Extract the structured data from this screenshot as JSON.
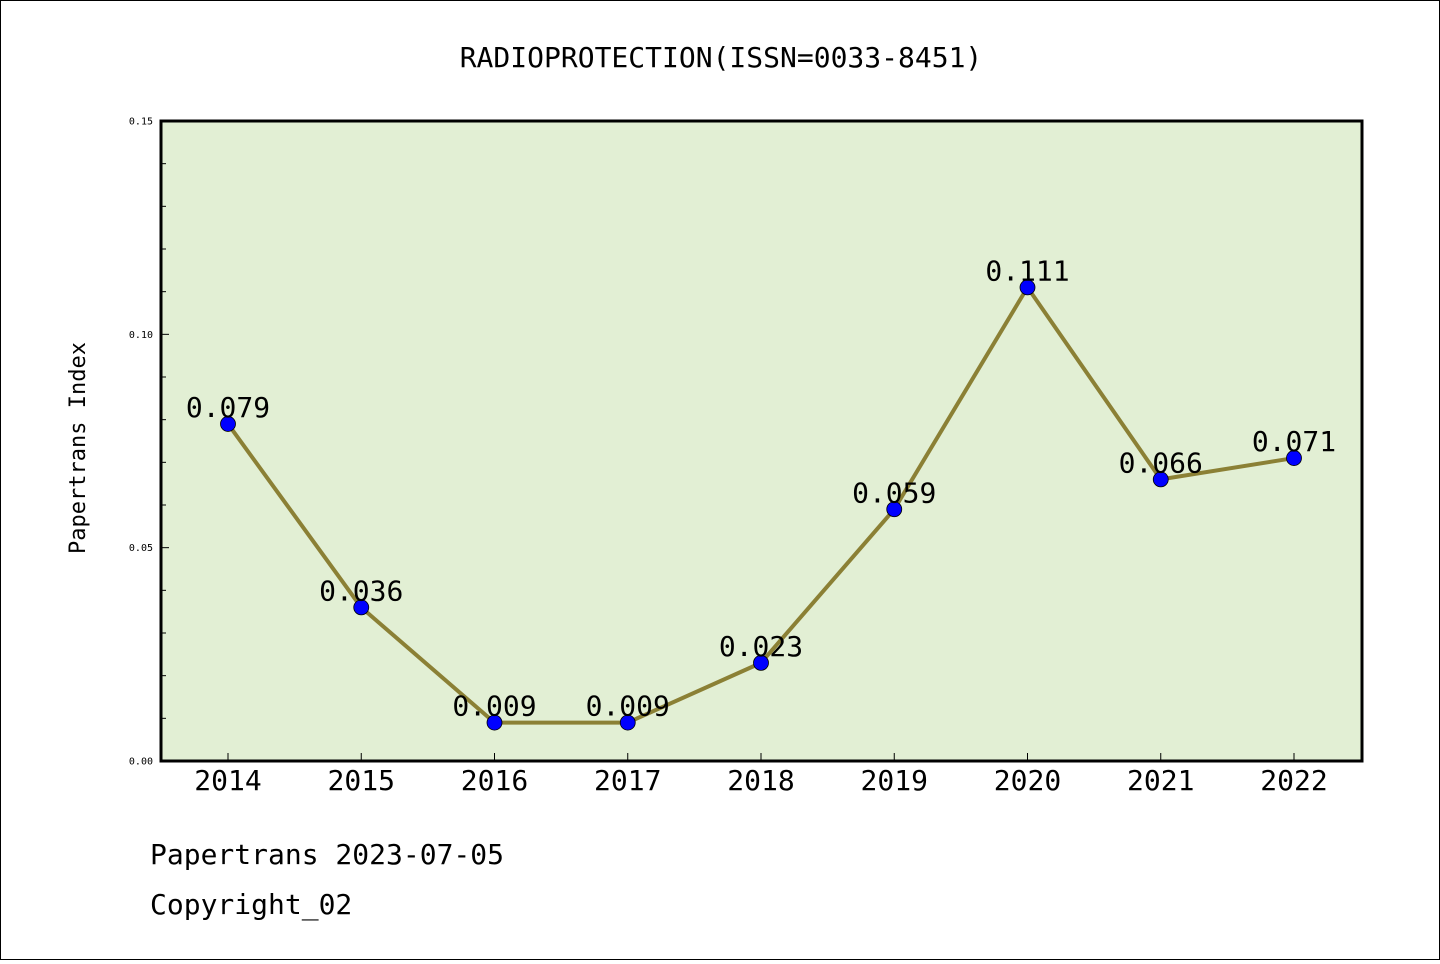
{
  "chart_data": {
    "type": "line",
    "title": "RADIOPROTECTION(ISSN=0033-8451)",
    "xlabel": "",
    "ylabel": "Papertrans Index",
    "categories": [
      "2014",
      "2015",
      "2016",
      "2017",
      "2018",
      "2019",
      "2020",
      "2021",
      "2022"
    ],
    "values": [
      0.079,
      0.036,
      0.009,
      0.009,
      0.023,
      0.059,
      0.111,
      0.066,
      0.071
    ],
    "data_labels": [
      "0.079",
      "0.036",
      "0.009",
      "0.009",
      "0.023",
      "0.059",
      "0.111",
      "0.066",
      "0.071"
    ],
    "ylim": [
      0,
      0.15
    ],
    "y_ticks": [
      0.0,
      0.05,
      0.1,
      0.15
    ],
    "y_tick_labels": [
      "0.00",
      "0.05",
      "0.10",
      "0.15"
    ],
    "grid": false,
    "colors": {
      "plot_background": "#e2efd4",
      "line": "#8b8035",
      "marker": "#0000ff"
    }
  },
  "footer": {
    "line1": "Papertrans 2023-07-05",
    "line2": "Copyright_02"
  }
}
